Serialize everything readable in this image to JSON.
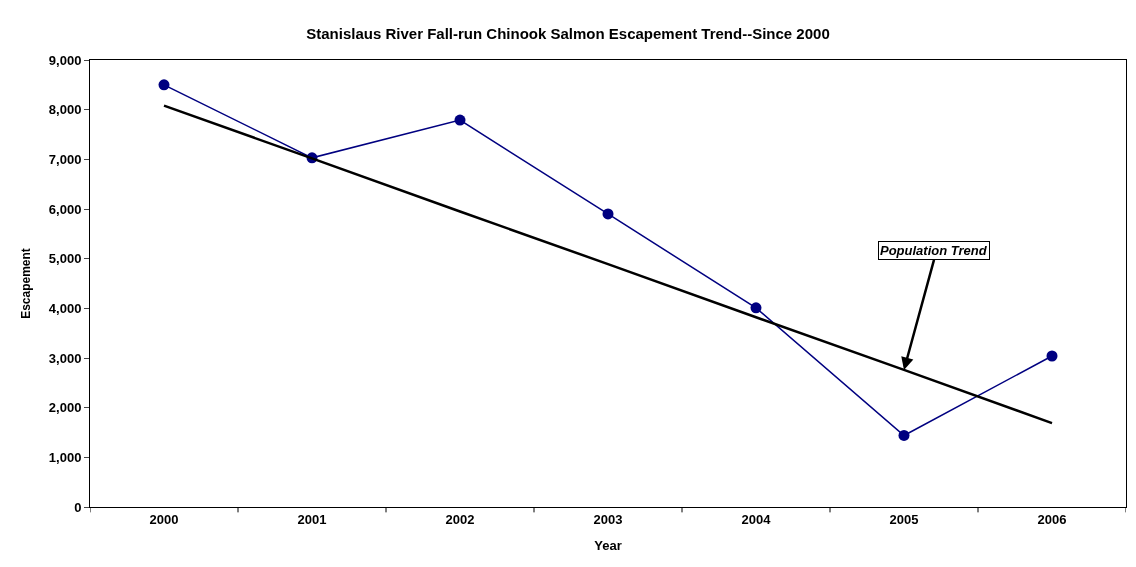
{
  "chart_data": {
    "type": "line",
    "title": "Stanislaus River Fall-run Chinook Salmon Escapement Trend--Since 2000",
    "xlabel": "Year",
    "ylabel": "Escapement",
    "categories": [
      "2000",
      "2001",
      "2002",
      "2003",
      "2004",
      "2005",
      "2006"
    ],
    "series": [
      {
        "color": "#000080",
        "values": [
          8500,
          7030,
          7790,
          5900,
          4010,
          1440,
          3040
        ],
        "marker": "circle"
      },
      {
        "type": "line",
        "color": "#000000",
        "values": [
          8080,
          7020,
          5950,
          4890,
          3820,
          2760,
          1690
        ],
        "marker": "none"
      }
    ],
    "annotations": [
      {
        "text": "Population Trend",
        "x": "2005",
        "y": 2760
      }
    ],
    "ylim": [
      0,
      9000
    ],
    "yticks": [
      {
        "value": 0,
        "label": "0"
      },
      {
        "value": 1000,
        "label": "1,000"
      },
      {
        "value": 2000,
        "label": "2,000"
      },
      {
        "value": 3000,
        "label": "3,000"
      },
      {
        "value": 4000,
        "label": "4,000"
      },
      {
        "value": 5000,
        "label": "5,000"
      },
      {
        "value": 6000,
        "label": "6,000"
      },
      {
        "value": 7000,
        "label": "7,000"
      },
      {
        "value": 8000,
        "label": "8,000"
      },
      {
        "value": 9000,
        "label": "9,000"
      }
    ]
  }
}
